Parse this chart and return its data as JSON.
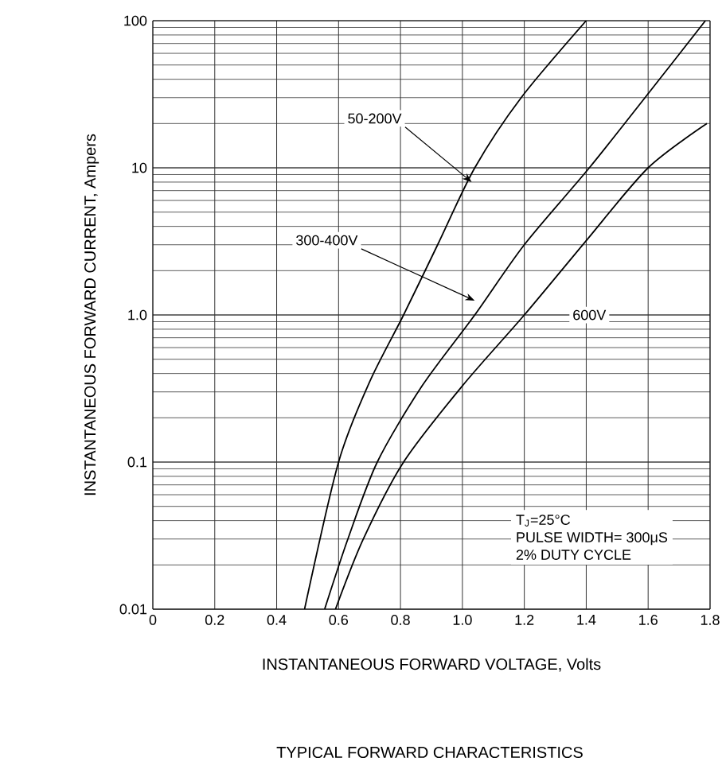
{
  "chart_data": {
    "type": "line",
    "title": "TYPICAL FORWARD  CHARACTERISTICS",
    "xlabel": "INSTANTANEOUS  FORWARD VOLTAGE, Volts",
    "ylabel": "INSTANTANEOUS FORWARD CURRENT, Ampers",
    "series": [
      {
        "color": "#000000",
        "x": [
          0.49,
          0.6,
          0.7,
          0.81,
          0.92,
          1.04,
          1.19,
          1.4
        ],
        "values": [
          0.01,
          0.1,
          0.35,
          1,
          3,
          10,
          30,
          100
        ]
      },
      {
        "color": "#000000",
        "x": [
          0.555,
          0.63,
          0.725,
          0.87,
          1.04,
          1.2,
          1.41,
          1.59,
          1.785
        ],
        "values": [
          0.01,
          0.03,
          0.1,
          0.33,
          1,
          3,
          10,
          30,
          100
        ]
      },
      {
        "color": "#000000",
        "x": [
          0.59,
          0.68,
          0.81,
          1.0,
          1.2,
          1.4,
          1.6,
          1.79
        ],
        "values": [
          0.01,
          0.03,
          0.1,
          0.33,
          1,
          3.2,
          10,
          20
        ]
      }
    ],
    "xlim": [
      0,
      1.8
    ],
    "ylim": [
      0.01,
      100
    ],
    "log": "y",
    "grid": true,
    "marker": "none",
    "line_style": "solid",
    "xticks": [
      0,
      0.2,
      0.4,
      0.6,
      0.8,
      {
        "value": 1,
        "label": "1.0"
      },
      1.2,
      1.4,
      1.6,
      1.8
    ],
    "yticks": [
      0.01,
      0.1,
      {
        "value": 1,
        "label": "1.0"
      },
      10,
      100
    ],
    "annotations": [
      {
        "text": "50-200V",
        "x": 1.03,
        "y": 8
      },
      {
        "text": "300-400V",
        "x": 1.04,
        "y": 1.25
      },
      {
        "text": "600V",
        "x": 1.41,
        "y": 1
      },
      "T$_{J}$=25°C",
      "PULSE WIDTH= 300μS",
      "2% DUTY CYCLE"
    ]
  }
}
